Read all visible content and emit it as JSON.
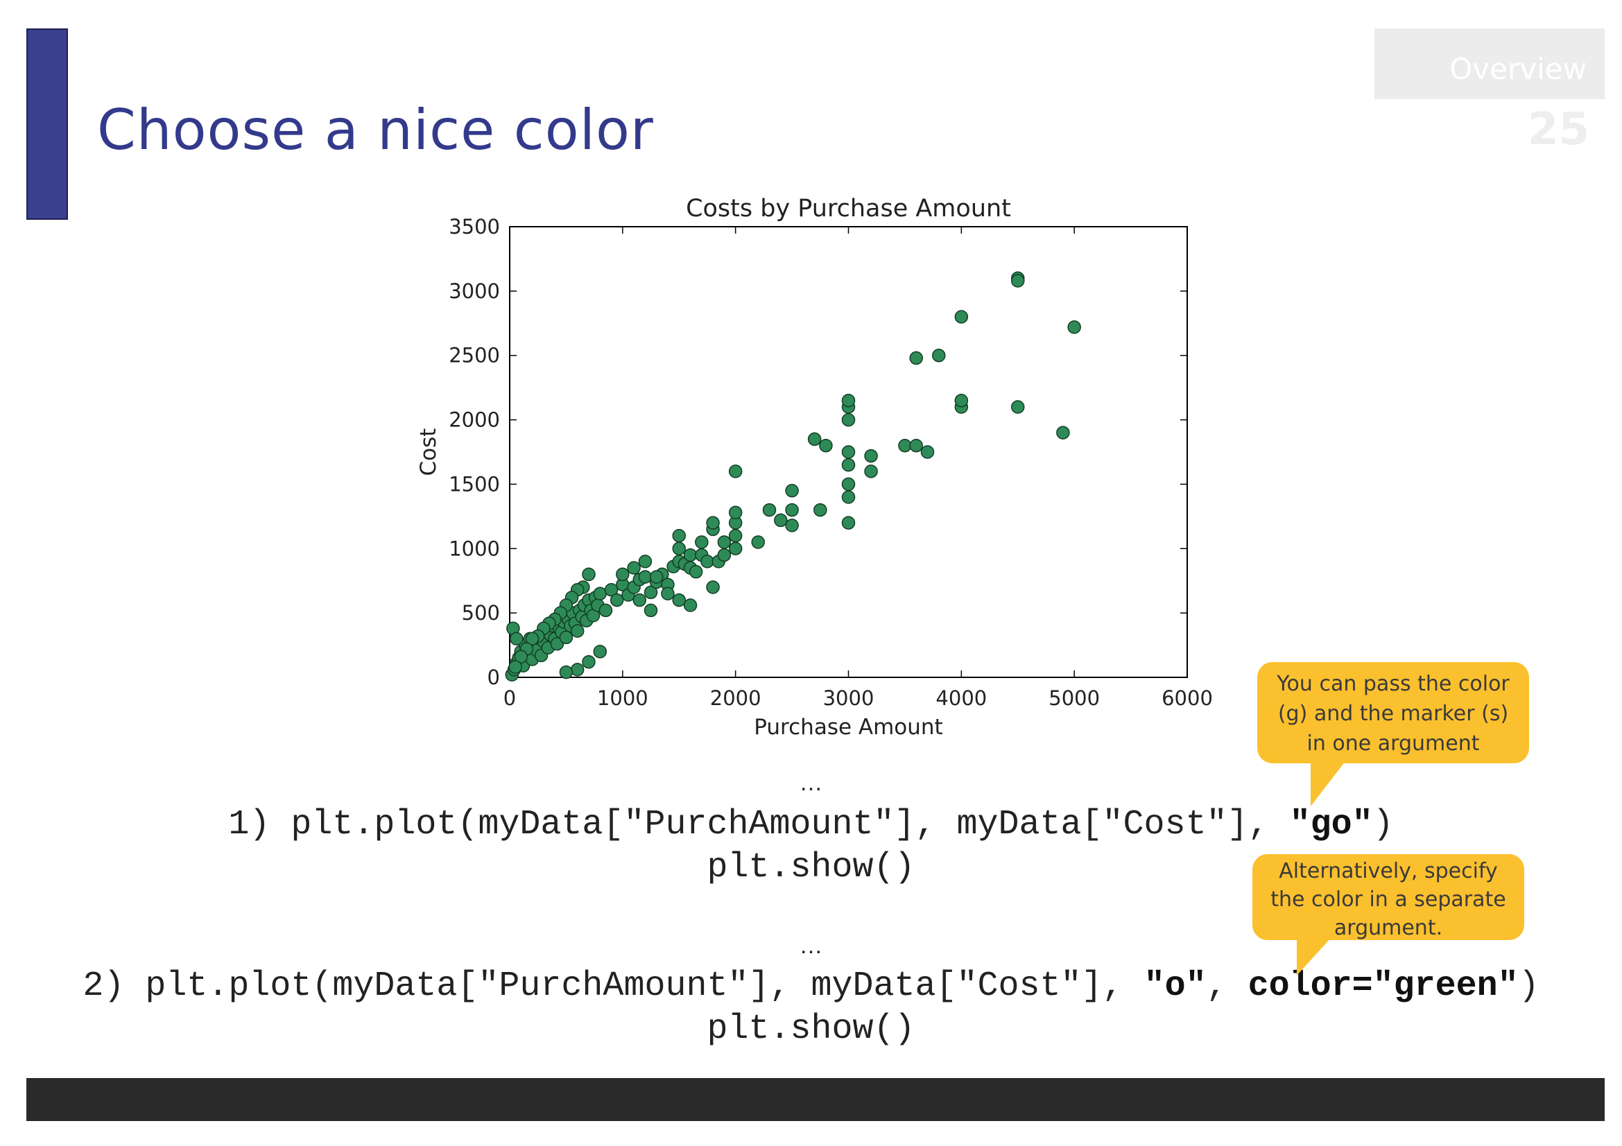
{
  "slide": {
    "title": "Choose a nice color",
    "section_tab": "Overview",
    "page_number": "25"
  },
  "code": {
    "ellipsis_1": "…",
    "line1_prefix": "1) plt.plot(myData[\"PurchAmount\"], myData[\"Cost\"], ",
    "line1_arg": "\"go\"",
    "line1_suffix": ")",
    "line1_show": "plt.show()",
    "ellipsis_2": "…",
    "line2_prefix": "2) plt.plot(myData[\"PurchAmount\"], myData[\"Cost\"], ",
    "line2_arg1": "\"o\"",
    "line2_sep": ", ",
    "line2_arg2": "color=\"green\"",
    "line2_suffix": ")",
    "line2_show": "plt.show()"
  },
  "callouts": {
    "first": {
      "lines": [
        "You can pass the color",
        "(g) and the marker (s)",
        "in one argument"
      ]
    },
    "second": {
      "lines": [
        "Alternatively, specify",
        "the color in a separate",
        "argument."
      ]
    }
  },
  "colors": {
    "accent": "#3b3f8f",
    "callout": "#fbc02d",
    "marker": "#2e8b57",
    "footer": "#2a2a2a"
  },
  "chart_data": {
    "type": "scatter",
    "title": "Costs by Purchase Amount",
    "xlabel": "Purchase Amount",
    "ylabel": "Cost",
    "xlim": [
      0,
      6000
    ],
    "ylim": [
      0,
      3500
    ],
    "xticks": [
      0,
      1000,
      2000,
      3000,
      4000,
      5000,
      6000
    ],
    "yticks": [
      0,
      500,
      1000,
      1500,
      2000,
      2500,
      3000,
      3500
    ],
    "grid": false,
    "marker_color": "#2e8b57",
    "points": [
      [
        20,
        20
      ],
      [
        40,
        60
      ],
      [
        60,
        110
      ],
      [
        80,
        150
      ],
      [
        100,
        200
      ],
      [
        120,
        90
      ],
      [
        140,
        250
      ],
      [
        160,
        180
      ],
      [
        180,
        300
      ],
      [
        200,
        140
      ],
      [
        220,
        260
      ],
      [
        240,
        210
      ],
      [
        260,
        320
      ],
      [
        280,
        170
      ],
      [
        300,
        280
      ],
      [
        320,
        360
      ],
      [
        340,
        230
      ],
      [
        360,
        330
      ],
      [
        380,
        400
      ],
      [
        400,
        300
      ],
      [
        420,
        260
      ],
      [
        440,
        380
      ],
      [
        460,
        350
      ],
      [
        480,
        430
      ],
      [
        500,
        310
      ],
      [
        520,
        450
      ],
      [
        540,
        400
      ],
      [
        560,
        500
      ],
      [
        580,
        420
      ],
      [
        600,
        360
      ],
      [
        620,
        520
      ],
      [
        640,
        470
      ],
      [
        660,
        560
      ],
      [
        680,
        440
      ],
      [
        700,
        600
      ],
      [
        720,
        520
      ],
      [
        740,
        480
      ],
      [
        760,
        620
      ],
      [
        780,
        560
      ],
      [
        800,
        650
      ],
      [
        850,
        520
      ],
      [
        900,
        680
      ],
      [
        950,
        600
      ],
      [
        1000,
        720
      ],
      [
        1050,
        640
      ],
      [
        1100,
        700
      ],
      [
        1150,
        760
      ],
      [
        1200,
        780
      ],
      [
        1250,
        660
      ],
      [
        1300,
        740
      ],
      [
        1350,
        800
      ],
      [
        1400,
        720
      ],
      [
        1450,
        860
      ],
      [
        1500,
        900
      ],
      [
        1500,
        1000
      ],
      [
        1500,
        1100
      ],
      [
        1550,
        880
      ],
      [
        1600,
        950
      ],
      [
        1600,
        850
      ],
      [
        1650,
        820
      ],
      [
        1700,
        950
      ],
      [
        1700,
        1050
      ],
      [
        1750,
        900
      ],
      [
        1800,
        1150
      ],
      [
        1800,
        1200
      ],
      [
        1850,
        900
      ],
      [
        1900,
        950
      ],
      [
        1900,
        1050
      ],
      [
        2000,
        1000
      ],
      [
        2000,
        1100
      ],
      [
        2000,
        1200
      ],
      [
        2000,
        1280
      ],
      [
        2000,
        1600
      ],
      [
        2200,
        1050
      ],
      [
        2300,
        1300
      ],
      [
        2400,
        1220
      ],
      [
        2500,
        1180
      ],
      [
        2500,
        1300
      ],
      [
        2500,
        1450
      ],
      [
        2700,
        1850
      ],
      [
        2750,
        1300
      ],
      [
        2800,
        1800
      ],
      [
        3000,
        1200
      ],
      [
        3000,
        1400
      ],
      [
        3000,
        1500
      ],
      [
        3000,
        1650
      ],
      [
        3000,
        1750
      ],
      [
        3000,
        2000
      ],
      [
        3000,
        2100
      ],
      [
        3000,
        2150
      ],
      [
        3200,
        1600
      ],
      [
        3200,
        1720
      ],
      [
        3500,
        1800
      ],
      [
        3600,
        1800
      ],
      [
        3600,
        2480
      ],
      [
        3700,
        1750
      ],
      [
        3800,
        2500
      ],
      [
        4000,
        2100
      ],
      [
        4000,
        2150
      ],
      [
        4000,
        2800
      ],
      [
        4500,
        2100
      ],
      [
        4500,
        3100
      ],
      [
        4500,
        3080
      ],
      [
        4900,
        1900
      ],
      [
        5000,
        2720
      ],
      [
        700,
        800
      ],
      [
        650,
        700
      ],
      [
        600,
        680
      ],
      [
        550,
        620
      ],
      [
        500,
        560
      ],
      [
        450,
        500
      ],
      [
        400,
        450
      ],
      [
        350,
        420
      ],
      [
        300,
        380
      ],
      [
        250,
        320
      ],
      [
        200,
        300
      ],
      [
        150,
        220
      ],
      [
        100,
        160
      ],
      [
        50,
        80
      ],
      [
        30,
        380
      ],
      [
        60,
        300
      ],
      [
        800,
        200
      ],
      [
        700,
        120
      ],
      [
        600,
        60
      ],
      [
        500,
        40
      ],
      [
        1000,
        800
      ],
      [
        1100,
        850
      ],
      [
        1200,
        900
      ],
      [
        1300,
        780
      ],
      [
        1400,
        650
      ],
      [
        1500,
        600
      ],
      [
        1600,
        560
      ],
      [
        1800,
        700
      ],
      [
        1250,
        520
      ],
      [
        1150,
        600
      ]
    ]
  }
}
